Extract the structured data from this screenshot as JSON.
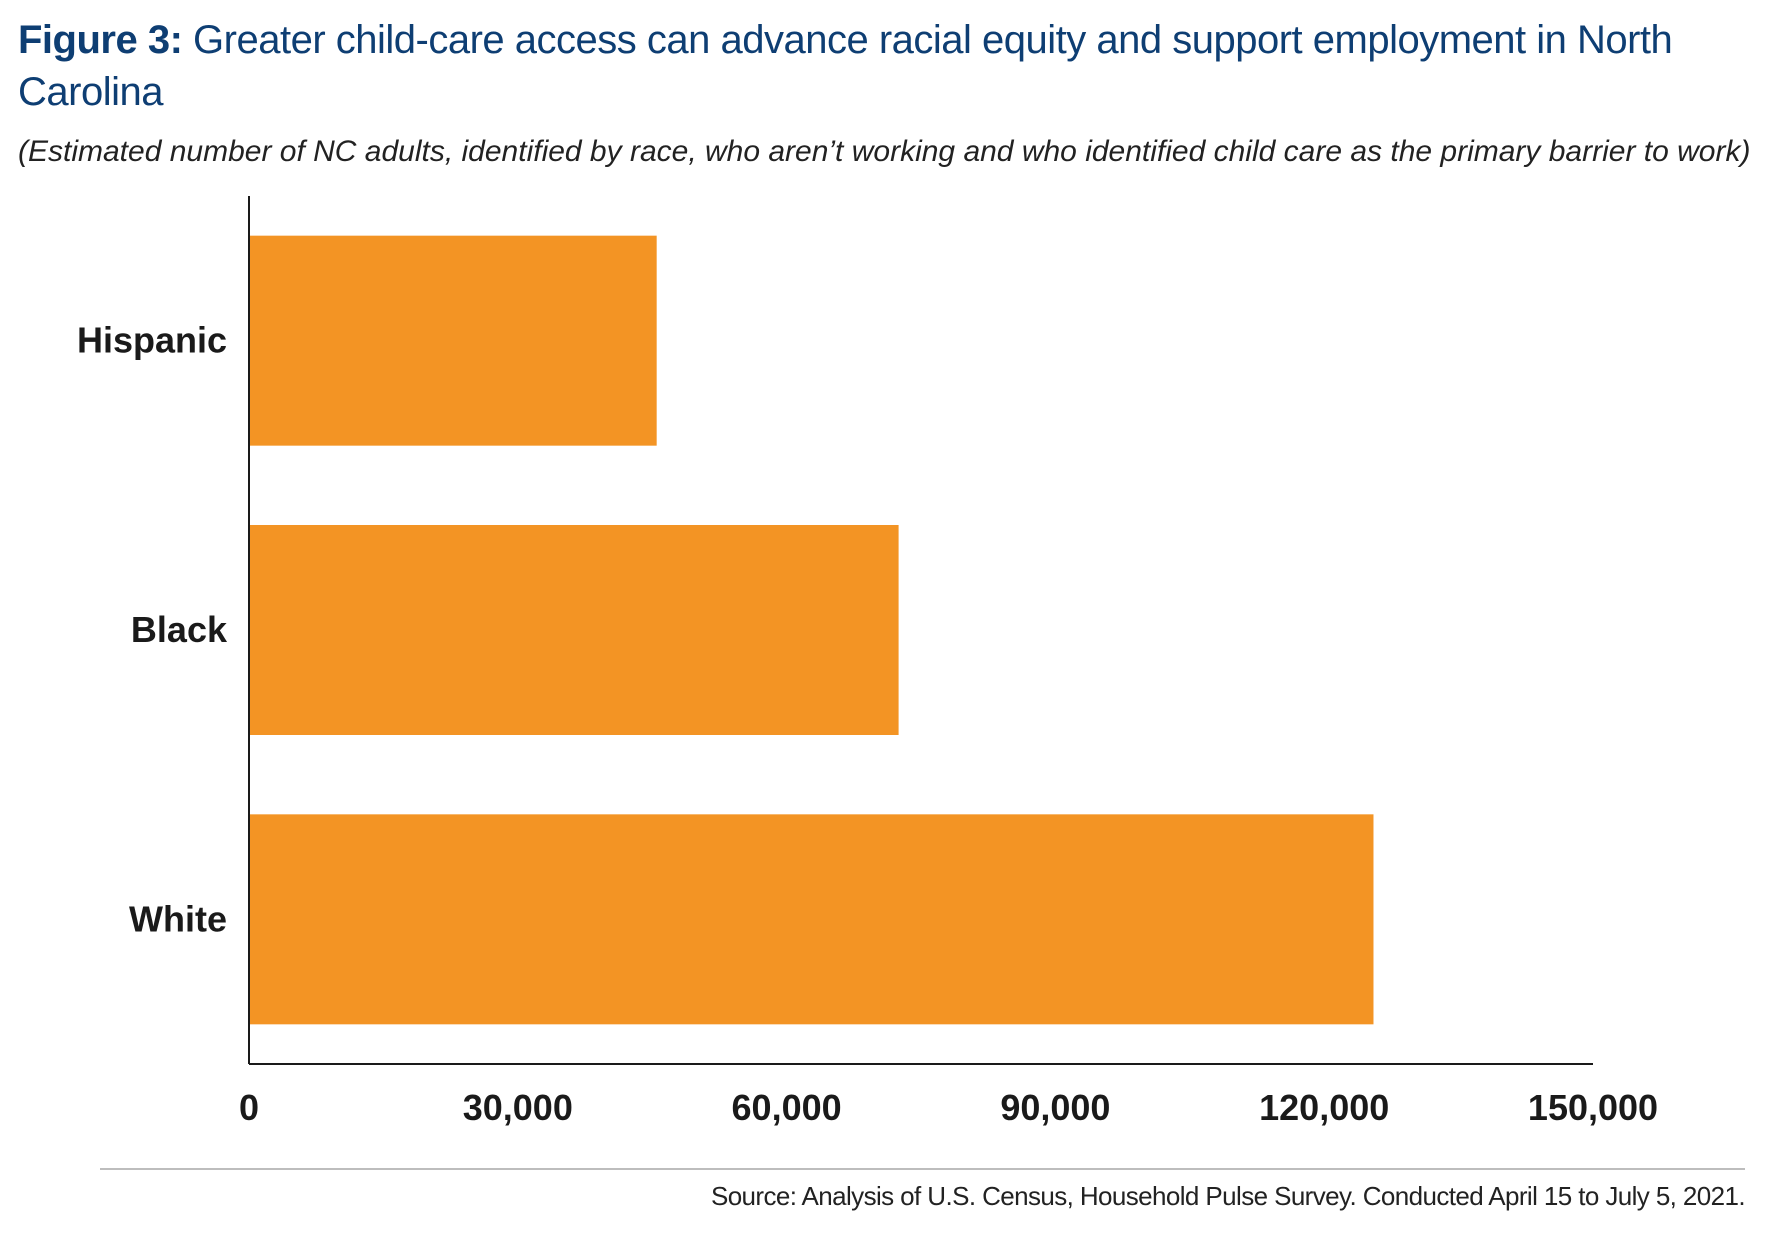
{
  "header": {
    "figure_label": "Figure 3:",
    "title": "Greater child-care access can advance racial equity and support employment in North Carolina",
    "subtitle": "(Estimated number of NC adults, identified by race, who aren’t working and who identified child care as the primary barrier to work)"
  },
  "colors": {
    "bar": "#f39424",
    "title": "#0e3e73",
    "axis": "#1a1a1a"
  },
  "chart_data": {
    "type": "bar",
    "orientation": "horizontal",
    "categories": [
      "Hispanic",
      "Black",
      "White"
    ],
    "values": [
      45500,
      72500,
      125500
    ],
    "xlim": [
      0,
      150000
    ],
    "xticks": [
      0,
      30000,
      60000,
      90000,
      120000,
      150000
    ],
    "xtick_labels": [
      "0",
      "30,000",
      "60,000",
      "90,000",
      "120,000",
      "150,000"
    ],
    "grid": false,
    "legend": "none"
  },
  "footer": {
    "source": "Source: Analysis of U.S. Census, Household Pulse Survey. Conducted April 15 to July 5, 2021."
  }
}
